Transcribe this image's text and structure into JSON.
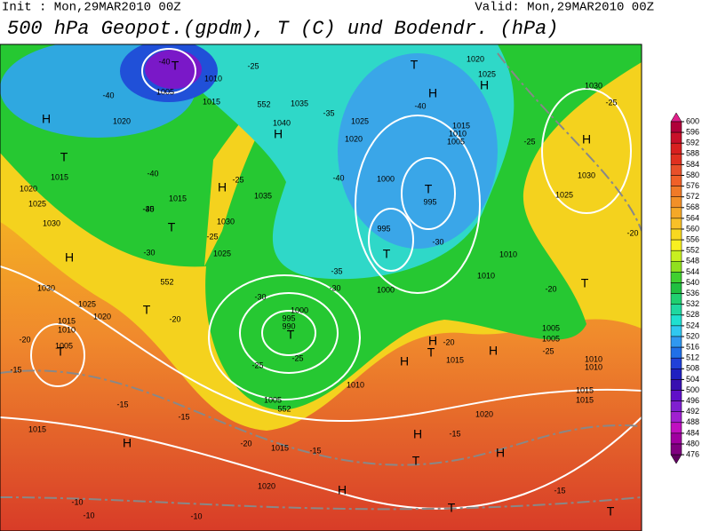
{
  "header": {
    "init": "Init : Mon,29MAR2010 00Z",
    "valid": "Valid: Mon,29MAR2010 00Z",
    "title": "500 hPa Geopot.(gpdm), T (C) und Bodendr. (hPa)"
  },
  "colorbar": {
    "levels": [
      600,
      596,
      592,
      588,
      584,
      580,
      576,
      572,
      568,
      564,
      560,
      556,
      552,
      548,
      544,
      540,
      536,
      532,
      528,
      524,
      520,
      516,
      512,
      508,
      504,
      500,
      496,
      492,
      488,
      484,
      480,
      476
    ],
    "colors": [
      "#e0208a",
      "#b0003a",
      "#c8102a",
      "#d82020",
      "#e03020",
      "#e8502a",
      "#f06028",
      "#f07a28",
      "#f29028",
      "#f5a828",
      "#f8c028",
      "#f8d820",
      "#f8f020",
      "#c8f020",
      "#90e020",
      "#40d030",
      "#20c040",
      "#20d070",
      "#20d8a0",
      "#20e0d0",
      "#30c8f0",
      "#3098f0",
      "#2070e8",
      "#2040d8",
      "#2020c0",
      "#3810b0",
      "#6010c8",
      "#8020d0",
      "#a020d0",
      "#c010c0",
      "#a000a0",
      "#800080",
      "#600060"
    ]
  },
  "map": {
    "labels": [
      "H",
      "T",
      "1020",
      "1015",
      "1025",
      "1030",
      "H",
      "1030",
      "1025",
      "1020",
      "T",
      "-20",
      "1015",
      "1010",
      "1005",
      "T",
      "-20",
      "-15",
      "1015",
      "-15",
      "-15",
      "H",
      "-10",
      "-10",
      "-10",
      "1020",
      "1015",
      "-20",
      "-15",
      "H",
      "T",
      "H",
      "T",
      "-15",
      "1020",
      "H",
      "-15",
      "T",
      "1015",
      "1010",
      "1005",
      "T",
      "-20",
      "-20",
      "1025",
      "1030",
      "H",
      "-25",
      "1030",
      "-25",
      "H",
      "1025",
      "1020",
      "T",
      "H",
      "-40",
      "1015",
      "1010",
      "1005",
      "1000",
      "T",
      "995",
      "995",
      "T",
      "-30",
      "1010",
      "1010",
      "1000",
      "-35",
      "-30",
      "-30",
      "1000",
      "995",
      "990",
      "T",
      "-25",
      "-25",
      "1005",
      "552",
      "1010",
      "-20",
      "H",
      "T",
      "H",
      "1015",
      "H",
      "-25",
      "1005",
      "1010",
      "1015",
      "-40",
      "1020",
      "-40",
      "T",
      "-40",
      "1005",
      "1015",
      "1010",
      "-25",
      "1040",
      "H",
      "1035",
      "552",
      "-35",
      "1025",
      "1020",
      "-40",
      "1015",
      "T",
      "-25",
      "1030",
      "-35",
      "-40",
      "H",
      "-25",
      "1035",
      "-30",
      "552",
      "1025"
    ]
  }
}
